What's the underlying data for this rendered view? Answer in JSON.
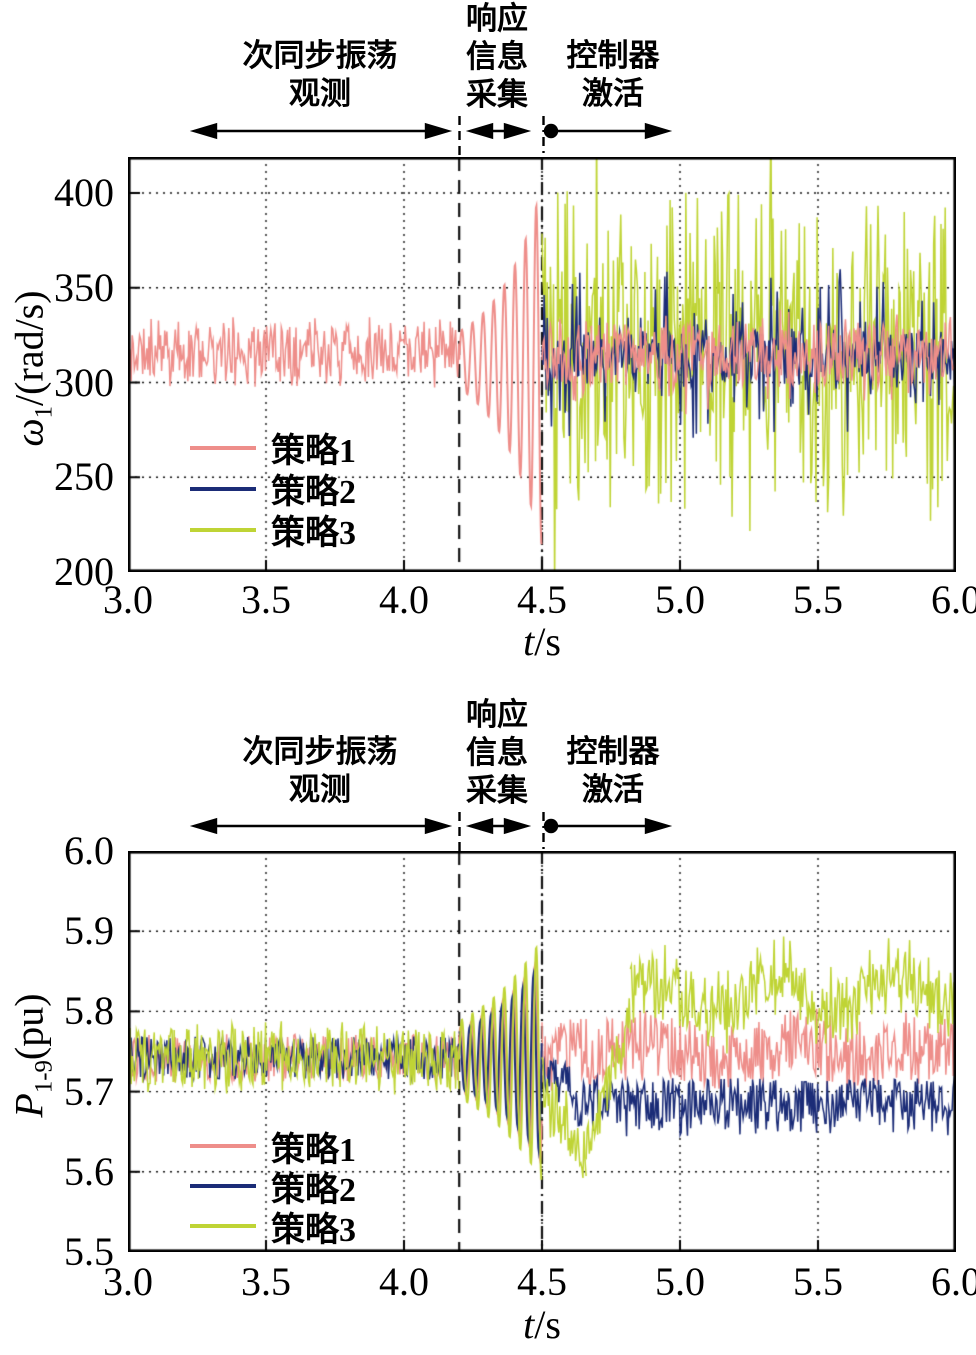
{
  "chart_data": {
    "type": "line",
    "description_note": "",
    "phases": [
      {
        "id": "observation",
        "lines": [
          "次同步振荡",
          "观测"
        ]
      },
      {
        "id": "collection",
        "lines": [
          "响应",
          "信息",
          "采集"
        ]
      },
      {
        "id": "activation",
        "lines": [
          "控制器",
          "激活"
        ]
      }
    ],
    "charts": [
      {
        "name": "omega-chart",
        "ylabel": {
          "sym": "ω",
          "sub": "1",
          "unit": "/(rad/s)"
        },
        "xlabel": {
          "sym": "t",
          "unit": "/s"
        },
        "xlim": [
          3.0,
          6.0
        ],
        "ylim": [
          200,
          419
        ],
        "xticks": [
          {
            "v": 3.0,
            "label": "3.0"
          },
          {
            "v": 3.5,
            "label": "3.5"
          },
          {
            "v": 4.0,
            "label": "4.0"
          },
          {
            "v": 4.5,
            "label": "4.5"
          },
          {
            "v": 5.0,
            "label": "5.0"
          },
          {
            "v": 5.5,
            "label": "5.5"
          },
          {
            "v": 6.0,
            "label": "6.0"
          }
        ],
        "yticks": [
          {
            "v": 400,
            "label": "400"
          },
          {
            "v": 350,
            "label": "350"
          },
          {
            "v": 300,
            "label": "300"
          },
          {
            "v": 250,
            "label": "250"
          },
          {
            "v": 200,
            "label": "200"
          }
        ],
        "grid_x": [
          3.5,
          4.0,
          4.5,
          5.0,
          5.5
        ],
        "grid_y": [
          400,
          350,
          300,
          250
        ],
        "event_lines": [
          {
            "x": 4.2,
            "dash": [
              14,
              9
            ]
          },
          {
            "x": 4.5,
            "dash": [
              13,
              5,
              2,
              5
            ]
          }
        ],
        "series": [
          {
            "name": "策略1",
            "color": "#EE8E8A",
            "segments": [
              {
                "t0": 3.0,
                "t1": 4.2,
                "mode": "noise",
                "c0": 316,
                "a0": 13,
                "spike_p": 0.12,
                "spike_amp": 6
              },
              {
                "t0": 4.2,
                "t1": 4.5,
                "mode": "osc",
                "c0": 312,
                "c1": 309,
                "a0": 15,
                "a1": 96,
                "freq": 26
              },
              {
                "t0": 4.5,
                "t1": 6.0,
                "mode": "noise",
                "c0": 315,
                "a0": 16,
                "spike_p": 0.12,
                "spike_amp": 9
              }
            ]
          },
          {
            "name": "策略2",
            "color": "#1B2C77",
            "segments": [
              {
                "t0": 4.5,
                "t1": 6.0,
                "mode": "noise",
                "c0": 314,
                "a0": 13,
                "spike_p": 0.3,
                "spike_amp": 33
              }
            ]
          },
          {
            "name": "策略3",
            "color": "#BFD435",
            "segments": [
              {
                "t0": 4.5,
                "t1": 6.0,
                "mode": "noise",
                "c0": 314,
                "a0": 27,
                "spike_p": 0.55,
                "spike_amp": 60
              }
            ]
          }
        ]
      },
      {
        "name": "power-chart",
        "ylabel": {
          "sym": "P",
          "sub": "1-9",
          "unit": "(pu)"
        },
        "xlabel": {
          "sym": "t",
          "unit": "/s"
        },
        "xlim": [
          3.0,
          6.0
        ],
        "ylim": [
          5.5,
          6.0
        ],
        "xticks": [
          {
            "v": 3.0,
            "label": "3.0"
          },
          {
            "v": 3.5,
            "label": "3.5"
          },
          {
            "v": 4.0,
            "label": "4.0"
          },
          {
            "v": 4.5,
            "label": "4.5"
          },
          {
            "v": 5.0,
            "label": "5.0"
          },
          {
            "v": 5.5,
            "label": "5.5"
          },
          {
            "v": 6.0,
            "label": "6.0"
          }
        ],
        "yticks": [
          {
            "v": 6.0,
            "label": "6.0"
          },
          {
            "v": 5.9,
            "label": "5.9"
          },
          {
            "v": 5.8,
            "label": "5.8"
          },
          {
            "v": 5.7,
            "label": "5.7"
          },
          {
            "v": 5.6,
            "label": "5.6"
          },
          {
            "v": 5.5,
            "label": "5.5"
          }
        ],
        "grid_x": [
          3.5,
          4.0,
          4.5,
          5.0,
          5.5
        ],
        "grid_y": [
          5.9,
          5.8,
          5.7,
          5.6
        ],
        "event_lines": [
          {
            "x": 4.2,
            "dash": [
              14,
              9
            ]
          },
          {
            "x": 4.5,
            "dash": [
              13,
              5,
              2,
              5
            ]
          }
        ],
        "series": [
          {
            "name": "策略1",
            "color": "#EE8E8A",
            "segments": [
              {
                "t0": 3.0,
                "t1": 4.2,
                "mode": "noise",
                "c0": 5.742,
                "a0": 0.03
              },
              {
                "t0": 4.2,
                "t1": 4.5,
                "mode": "osc",
                "c0": 5.74,
                "a0": 0.04,
                "a1": 0.13,
                "freq": 26,
                "ph": 0.8
              },
              {
                "t0": 4.5,
                "t1": 4.78,
                "mode": "noise",
                "c0": 5.74,
                "c1": 5.752,
                "a0": 0.05,
                "a1": 0.04
              },
              {
                "t0": 4.78,
                "t1": 6.0,
                "mode": "noise",
                "c0": 5.75,
                "a0": 0.038,
                "wave_a": 0.008,
                "wave_f": 2.0,
                "spike_p": 0.1,
                "spike_amp": 0.012
              }
            ]
          },
          {
            "name": "策略2",
            "color": "#1B2C77",
            "segments": [
              {
                "t0": 3.0,
                "t1": 4.2,
                "mode": "noise",
                "c0": 5.742,
                "a0": 0.027
              },
              {
                "t0": 4.2,
                "t1": 4.5,
                "mode": "osc",
                "c0": 5.74,
                "a0": 0.035,
                "a1": 0.12,
                "freq": 26,
                "ph": 1.6
              },
              {
                "t0": 4.5,
                "t1": 4.62,
                "mode": "noise",
                "c0": 5.72,
                "c1": 5.705,
                "a0": 0.026
              },
              {
                "t0": 4.62,
                "t1": 6.0,
                "mode": "noise",
                "c0": 5.69,
                "a0": 0.027,
                "spike_p": 0.15,
                "spike_amp": 0.02,
                "spike_dir": -1
              }
            ]
          },
          {
            "name": "策略3",
            "color": "#BFD435",
            "segments": [
              {
                "t0": 3.0,
                "t1": 4.2,
                "mode": "noise",
                "c0": 5.742,
                "a0": 0.036,
                "spike_p": 0.12,
                "spike_amp": 0.01
              },
              {
                "t0": 4.2,
                "t1": 4.5,
                "mode": "osc",
                "c0": 5.74,
                "a0": 0.048,
                "a1": 0.152,
                "freq": 26
              },
              {
                "t0": 4.5,
                "t1": 4.66,
                "mode": "noise",
                "c0": 5.695,
                "c1": 5.625,
                "a0": 0.034,
                "spike_p": 0.12,
                "spike_amp": 0.015
              },
              {
                "t0": 4.66,
                "t1": 4.82,
                "mode": "noise",
                "c0": 5.628,
                "c1": 5.79,
                "a0": 0.034
              },
              {
                "t0": 4.82,
                "t1": 6.0,
                "mode": "noise",
                "c0": 5.815,
                "c1": 5.832,
                "a0": 0.034,
                "wave_a": 0.022,
                "wave_f": 2.4,
                "spike_p": 0.18,
                "spike_amp": 0.02
              }
            ]
          }
        ]
      }
    ]
  }
}
